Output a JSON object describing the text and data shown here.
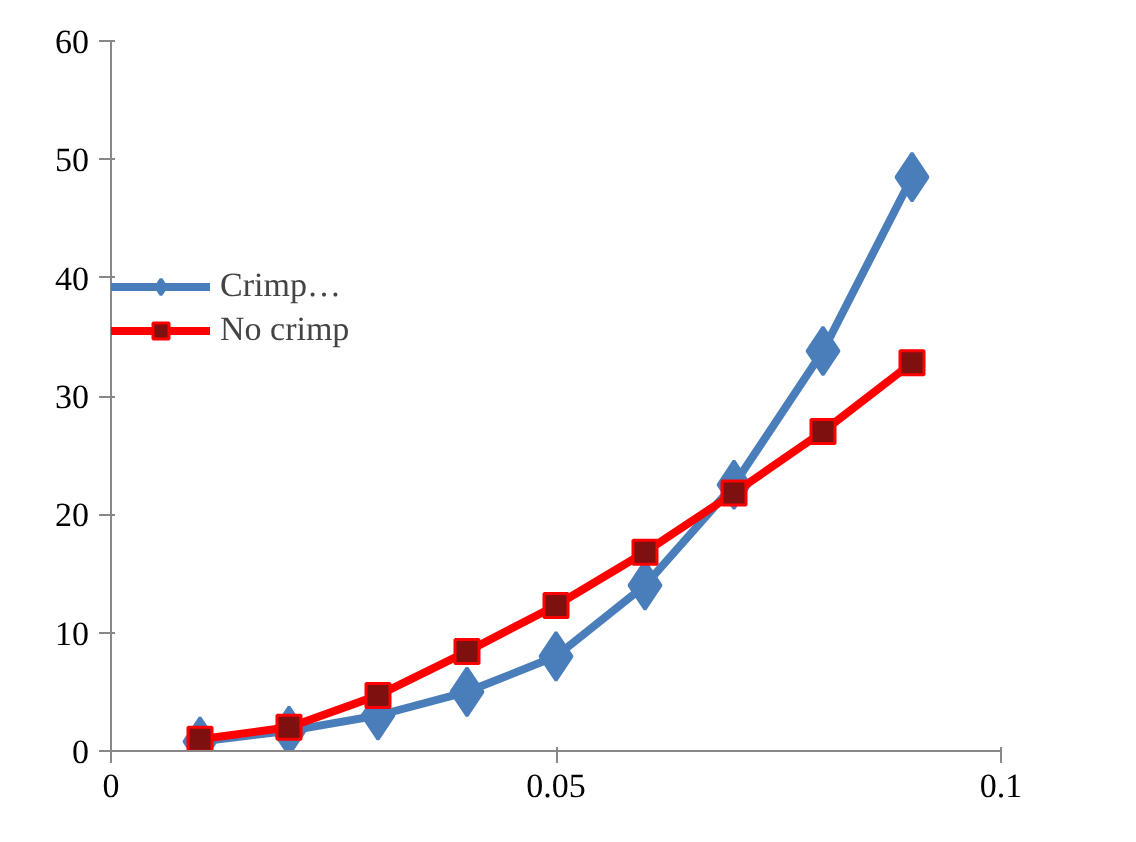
{
  "chart_data": {
    "type": "line",
    "x": [
      0.01,
      0.02,
      0.03,
      0.04,
      0.05,
      0.06,
      0.07,
      0.08,
      0.09
    ],
    "series": [
      {
        "name": "Crimp…",
        "color": "#4a7ebb",
        "marker": "diamond",
        "values": [
          0.8,
          1.7,
          3,
          5,
          8,
          14,
          22.5,
          33.8,
          48.5
        ]
      },
      {
        "name": "No crimp",
        "color": "#ff0000",
        "marker": "square",
        "values": [
          1,
          2,
          4.7,
          8.4,
          12.3,
          16.8,
          21.8,
          27,
          32.8
        ]
      }
    ],
    "xlim": [
      0,
      0.1
    ],
    "xticks": [
      0,
      0.05,
      0.1
    ],
    "ylim": [
      0,
      60
    ],
    "yticks": [
      0,
      10,
      20,
      30,
      40,
      50,
      60
    ],
    "grid": false,
    "legend": "left",
    "line_style": "solid"
  }
}
